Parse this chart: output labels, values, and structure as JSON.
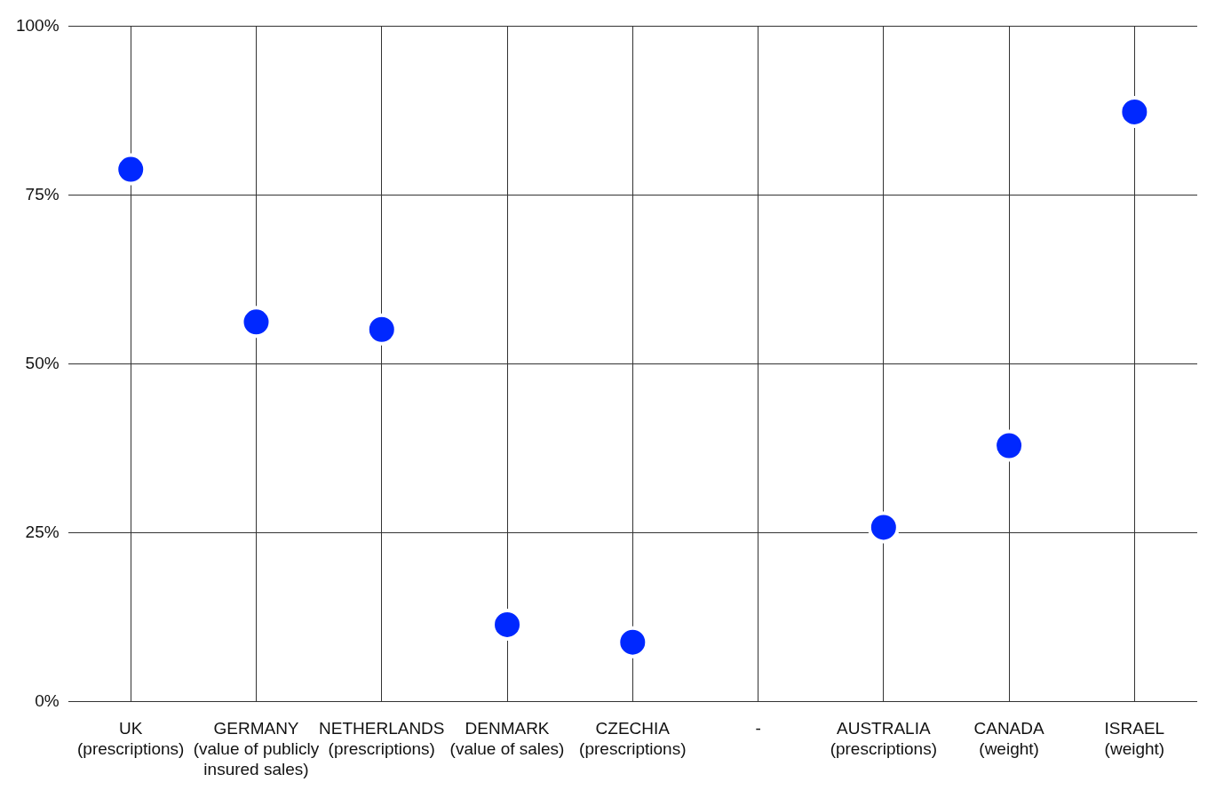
{
  "chart_data": {
    "type": "scatter",
    "categories": [
      "UK (prescriptions)",
      "GERMANY (value of publicly insured sales)",
      "NETHERLANDS (prescriptions)",
      "DENMARK (value of sales)",
      "CZECHIA (prescriptions)",
      "-",
      "AUSTRALIA (prescriptions)",
      "CANADA (weight)",
      "ISRAEL (weight)"
    ],
    "values": [
      78.8,
      56.2,
      55.1,
      11.4,
      8.8,
      null,
      25.8,
      37.9,
      87.3
    ],
    "color": "#0028ff",
    "ylim": [
      0,
      100
    ],
    "yticks": [
      {
        "value": 0,
        "label": "0%"
      },
      {
        "value": 25,
        "label": "25%"
      },
      {
        "value": 50,
        "label": "50%"
      },
      {
        "value": 75,
        "label": "75%"
      },
      {
        "value": 100,
        "label": "100%"
      }
    ],
    "grid": true,
    "legend": false,
    "marker": "circle"
  }
}
